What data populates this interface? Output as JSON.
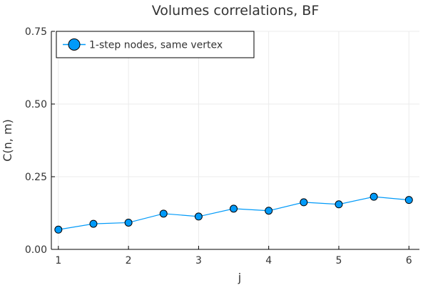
{
  "chart_data": {
    "type": "line",
    "title": "Volumes correlations, BF",
    "xlabel": "j",
    "ylabel": "C(n, m)",
    "xlim": [
      0.9,
      6.15
    ],
    "ylim": [
      0,
      0.75
    ],
    "x_ticks": [
      1,
      2,
      3,
      4,
      5,
      6
    ],
    "y_ticks": [
      0,
      0.25,
      0.5,
      0.75
    ],
    "x_tick_labels": [
      "1",
      "2",
      "3",
      "4",
      "5",
      "6"
    ],
    "y_tick_labels": [
      "0.00",
      "0.25",
      "0.50",
      "0.75"
    ],
    "grid": true,
    "legend_position": "top-left",
    "series": [
      {
        "name": "1-step nodes, same vertex",
        "color": "#009af9",
        "marker": "circle",
        "x": [
          1,
          1.5,
          2,
          2.5,
          3,
          3.5,
          4,
          4.5,
          5,
          5.5,
          6
        ],
        "y": [
          0.068,
          0.088,
          0.092,
          0.123,
          0.113,
          0.14,
          0.133,
          0.162,
          0.155,
          0.181,
          0.17
        ]
      }
    ]
  }
}
